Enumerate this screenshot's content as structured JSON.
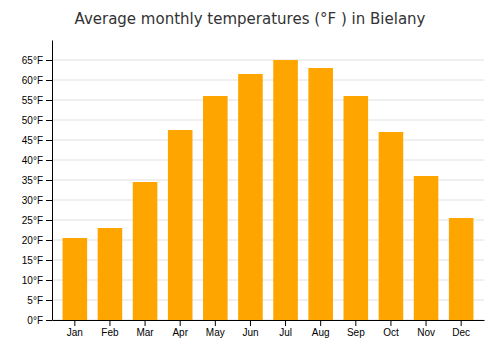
{
  "chart_data": {
    "type": "bar",
    "title": "Average monthly temperatures (°F ) in Bielany",
    "categories": [
      "Jan",
      "Feb",
      "Mar",
      "Apr",
      "May",
      "Jun",
      "Jul",
      "Aug",
      "Sep",
      "Oct",
      "Nov",
      "Dec"
    ],
    "values": [
      20.5,
      23.0,
      34.5,
      47.5,
      56.0,
      61.5,
      65.0,
      63.0,
      56.0,
      47.0,
      36.0,
      25.5
    ],
    "color": "#FFA500",
    "ylim": [
      0,
      70
    ],
    "yticks": [
      {
        "value": 0,
        "label": "0°F"
      },
      {
        "value": 5,
        "label": "5°F"
      },
      {
        "value": 10,
        "label": "10°F"
      },
      {
        "value": 15,
        "label": "15°F"
      },
      {
        "value": 20,
        "label": "20°F"
      },
      {
        "value": 25,
        "label": "25°F"
      },
      {
        "value": 30,
        "label": "30°F"
      },
      {
        "value": 35,
        "label": "35°F"
      },
      {
        "value": 40,
        "label": "40°F"
      },
      {
        "value": 45,
        "label": "45°F"
      },
      {
        "value": 50,
        "label": "50°F"
      },
      {
        "value": 55,
        "label": "55°F"
      },
      {
        "value": 60,
        "label": "60°F"
      },
      {
        "value": 65,
        "label": "65°F"
      }
    ],
    "grid": true
  }
}
